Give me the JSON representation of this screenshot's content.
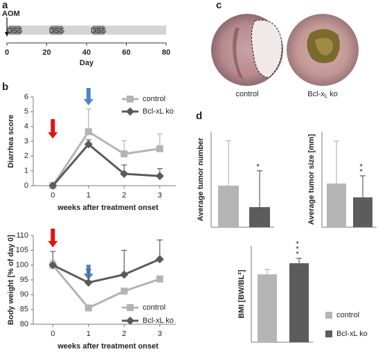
{
  "panel_labels": [
    "a",
    "b",
    "c",
    "d"
  ],
  "image_labels": [
    {
      "text": "control"
    },
    {
      "text": "Bcl-x",
      "sub": "L",
      "suffix": "ko"
    }
  ],
  "chart_data": [
    {
      "type": "timeline",
      "annotation": "AOM",
      "xlim": [
        0,
        80
      ],
      "xticks": [
        0,
        20,
        40,
        60,
        80
      ],
      "xlabel": "Day",
      "bar_color": "#d4d4d4",
      "series": [
        {
          "name": "DSS",
          "color": "#8a8a8a",
          "start": [
            1,
            22,
            43
          ],
          "end": [
            7,
            28,
            49
          ]
        }
      ]
    },
    {
      "type": "line",
      "ylabel": "Diarrhea score",
      "xlabel": "weeks after treatment onset",
      "x": [
        0,
        1,
        2,
        3
      ],
      "xlim": [
        -0.55,
        3.45
      ],
      "xticks": [
        0,
        1,
        2,
        3
      ],
      "ylim": [
        0,
        6
      ],
      "yticks": [
        0,
        1,
        2,
        3,
        4,
        5,
        6
      ],
      "legend": "upper right",
      "arrows": [
        {
          "x": 0,
          "color": "#e3120b"
        },
        {
          "x": 1,
          "color": "#4a86c8"
        }
      ],
      "series": [
        {
          "name": "control",
          "color": "#b3b3b3",
          "marker": "square",
          "values": [
            0,
            3.65,
            2.15,
            2.5
          ],
          "errors": [
            0,
            1.55,
            0.9,
            1.0
          ]
        },
        {
          "name": "Bcl-xL ko",
          "color": "#5a5a5a",
          "marker": "diamond",
          "values": [
            0,
            2.8,
            0.8,
            0.65
          ],
          "errors": [
            0.05,
            0.3,
            0.6,
            0.5
          ]
        }
      ]
    },
    {
      "type": "line",
      "ylabel": "Body weight [% of day 0]",
      "xlabel": "weeks after treatment onset",
      "x": [
        0,
        1,
        2,
        3
      ],
      "xlim": [
        -0.55,
        3.45
      ],
      "xticks": [
        0,
        1,
        2,
        3
      ],
      "ylim": [
        80,
        110
      ],
      "yticks": [
        80,
        85,
        90,
        95,
        100,
        105,
        110
      ],
      "legend": "lower right",
      "arrows": [
        {
          "x": 0,
          "color": "#e3120b"
        },
        {
          "x": 1,
          "color": "#4a86c8"
        }
      ],
      "series": [
        {
          "name": "control",
          "color": "#b3b3b3",
          "marker": "square",
          "values": [
            100,
            85.5,
            91.2,
            95.3
          ],
          "errors": [
            1.5,
            0,
            0,
            0
          ]
        },
        {
          "name": "Bcl-xL ko",
          "color": "#5a5a5a",
          "marker": "diamond",
          "values": [
            100,
            94.1,
            96.8,
            102
          ],
          "errors": [
            4.6,
            4.4,
            8.2,
            6.5
          ]
        }
      ]
    },
    {
      "type": "bar",
      "ylabel": "Average tumor number",
      "ylim": [
        0,
        10
      ],
      "values": [
        4.35,
        2.1
      ],
      "errors": [
        4.7,
        3.8
      ],
      "colors": [
        "#b5b5b5",
        "#5c5c5c"
      ],
      "significance": "*"
    },
    {
      "type": "bar",
      "ylabel": "Average tumor size [mm]",
      "ylim": [
        0,
        4
      ],
      "values": [
        1.83,
        1.25
      ],
      "errors": [
        1.77,
        0.9
      ],
      "colors": [
        "#b5b5b5",
        "#5c5c5c"
      ],
      "significance": "* *"
    },
    {
      "type": "bar",
      "ylabel": "BMI [BW/BL²]",
      "ylim": [
        0,
        0.39
      ],
      "legend": "right",
      "significance": "* * *",
      "series": [
        {
          "name": "control",
          "color": "#b5b5b5",
          "values": [
            0.275
          ],
          "errors": [
            0.02
          ]
        },
        {
          "name": "Bcl-xL ko",
          "color": "#5c5c5c",
          "values": [
            0.32
          ],
          "errors": [
            0.02
          ]
        }
      ]
    }
  ]
}
